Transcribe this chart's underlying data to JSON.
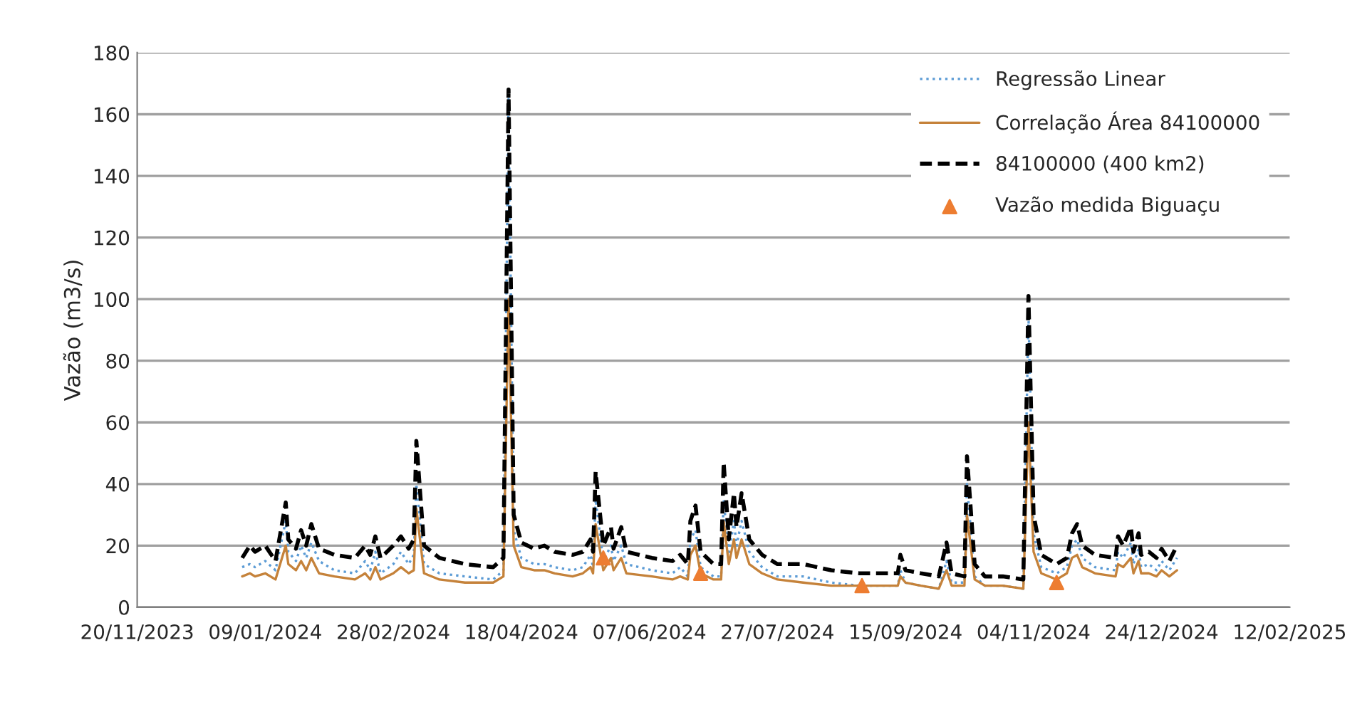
{
  "chart_data": {
    "type": "line",
    "ylabel": "Vazão (m3/s)",
    "ylim": [
      0,
      180
    ],
    "yticks": [
      0,
      20,
      40,
      60,
      80,
      100,
      120,
      140,
      160,
      180
    ],
    "xlim": [
      "2023-11-20",
      "2025-02-12"
    ],
    "xticks": [
      {
        "value": "2023-11-20",
        "label": "20/11/2023"
      },
      {
        "value": "2024-01-09",
        "label": "09/01/2024"
      },
      {
        "value": "2024-02-28",
        "label": "28/02/2024"
      },
      {
        "value": "2024-04-18",
        "label": "18/04/2024"
      },
      {
        "value": "2024-06-07",
        "label": "07/06/2024"
      },
      {
        "value": "2024-07-27",
        "label": "27/07/2024"
      },
      {
        "value": "2024-09-15",
        "label": "15/09/2024"
      },
      {
        "value": "2024-11-04",
        "label": "04/11/2024"
      },
      {
        "value": "2024-12-24",
        "label": "24/12/2024"
      },
      {
        "value": "2025-02-12",
        "label": "12/02/2025"
      }
    ],
    "grid": "y",
    "legend": "top right",
    "x": [
      "2023-12-31",
      "2024-01-03",
      "2024-01-05",
      "2024-01-09",
      "2024-01-13",
      "2024-01-17",
      "2024-01-18",
      "2024-01-21",
      "2024-01-23",
      "2024-01-25",
      "2024-01-27",
      "2024-01-30",
      "2024-02-05",
      "2024-02-13",
      "2024-02-17",
      "2024-02-19",
      "2024-02-21",
      "2024-02-23",
      "2024-02-28",
      "2024-03-02",
      "2024-03-05",
      "2024-03-07",
      "2024-03-08",
      "2024-03-11",
      "2024-03-17",
      "2024-03-27",
      "2024-04-07",
      "2024-04-11",
      "2024-04-13",
      "2024-04-15",
      "2024-04-18",
      "2024-04-23",
      "2024-04-27",
      "2024-05-01",
      "2024-05-08",
      "2024-05-12",
      "2024-05-15",
      "2024-05-16",
      "2024-05-17",
      "2024-05-20",
      "2024-05-23",
      "2024-05-24",
      "2024-05-27",
      "2024-05-29",
      "2024-06-08",
      "2024-06-16",
      "2024-06-19",
      "2024-06-22",
      "2024-06-23",
      "2024-06-25",
      "2024-06-27",
      "2024-07-02",
      "2024-07-05",
      "2024-07-06",
      "2024-07-08",
      "2024-07-10",
      "2024-07-11",
      "2024-07-13",
      "2024-07-16",
      "2024-07-21",
      "2024-07-27",
      "2024-08-06",
      "2024-08-17",
      "2024-08-28",
      "2024-09-08",
      "2024-09-12",
      "2024-09-13",
      "2024-09-15",
      "2024-09-21",
      "2024-09-28",
      "2024-10-01",
      "2024-10-03",
      "2024-10-08",
      "2024-10-09",
      "2024-10-12",
      "2024-10-16",
      "2024-10-23",
      "2024-10-31",
      "2024-11-02",
      "2024-11-04",
      "2024-11-07",
      "2024-11-13",
      "2024-11-17",
      "2024-11-19",
      "2024-11-21",
      "2024-11-23",
      "2024-11-28",
      "2024-12-06",
      "2024-12-07",
      "2024-12-09",
      "2024-12-12",
      "2024-12-13",
      "2024-12-15",
      "2024-12-16",
      "2024-12-19",
      "2024-12-22",
      "2024-12-24",
      "2024-12-27",
      "2024-12-30"
    ],
    "series": [
      {
        "name": "Regressão Linear",
        "color": "#5b9bd5",
        "line_style": "dotted",
        "values": [
          13,
          14,
          13,
          15,
          12,
          28,
          18,
          15,
          20,
          16,
          21,
          15,
          12,
          11,
          15,
          12,
          18,
          11,
          14,
          18,
          14,
          17,
          40,
          14,
          11,
          10,
          9,
          12,
          165,
          25,
          16,
          14,
          14,
          13,
          12,
          13,
          17,
          13,
          35,
          15,
          20,
          15,
          20,
          14,
          12,
          11,
          13,
          10,
          22,
          25,
          13,
          10,
          10,
          35,
          17,
          28,
          20,
          28,
          18,
          13,
          10,
          10,
          8,
          7,
          7,
          7,
          12,
          8,
          7,
          6,
          15,
          8,
          8,
          40,
          10,
          7,
          7,
          6,
          95,
          24,
          13,
          11,
          13,
          20,
          22,
          16,
          13,
          12,
          18,
          16,
          21,
          14,
          19,
          13,
          14,
          12,
          15,
          12,
          16
        ]
      },
      {
        "name": "Correlação Área 84100000",
        "color": "#c5823a",
        "line_style": "solid",
        "values": [
          10,
          11,
          10,
          11,
          9,
          20,
          14,
          12,
          15,
          12,
          16,
          11,
          10,
          9,
          11,
          9,
          13,
          9,
          11,
          13,
          11,
          12,
          32,
          11,
          9,
          8,
          8,
          10,
          100,
          20,
          13,
          12,
          12,
          11,
          10,
          11,
          13,
          11,
          27,
          12,
          16,
          12,
          16,
          11,
          10,
          9,
          10,
          9,
          17,
          20,
          11,
          9,
          9,
          28,
          14,
          22,
          16,
          22,
          14,
          11,
          9,
          8,
          7,
          7,
          7,
          7,
          10,
          8,
          7,
          6,
          12,
          7,
          7,
          30,
          9,
          7,
          7,
          6,
          60,
          18,
          11,
          9,
          11,
          16,
          17,
          13,
          11,
          10,
          14,
          13,
          16,
          11,
          15,
          11,
          11,
          10,
          12,
          10,
          12
        ]
      },
      {
        "name": "84100000 (400 km2)",
        "color": "#000000",
        "line_style": "dashed",
        "values": [
          16,
          20,
          18,
          20,
          15,
          34,
          22,
          19,
          25,
          20,
          27,
          19,
          17,
          16,
          20,
          17,
          23,
          16,
          20,
          23,
          19,
          22,
          54,
          20,
          16,
          14,
          13,
          16,
          168,
          30,
          21,
          19,
          20,
          18,
          17,
          18,
          22,
          18,
          44,
          20,
          26,
          19,
          26,
          18,
          16,
          15,
          17,
          14,
          28,
          33,
          18,
          14,
          14,
          47,
          22,
          37,
          26,
          37,
          22,
          17,
          14,
          14,
          12,
          11,
          11,
          11,
          17,
          12,
          11,
          10,
          21,
          11,
          10,
          49,
          14,
          10,
          10,
          9,
          101,
          30,
          17,
          14,
          16,
          24,
          27,
          20,
          17,
          16,
          23,
          20,
          26,
          18,
          24,
          17,
          18,
          16,
          19,
          15,
          20
        ]
      },
      {
        "name": "Vazão medida Biguaçu",
        "type": "scatter",
        "marker": "triangle",
        "color": "#ed7d31",
        "x": [
          "2024-05-20",
          "2024-06-27",
          "2024-08-29",
          "2024-11-13"
        ],
        "values": [
          16,
          11,
          7,
          8
        ]
      }
    ]
  }
}
